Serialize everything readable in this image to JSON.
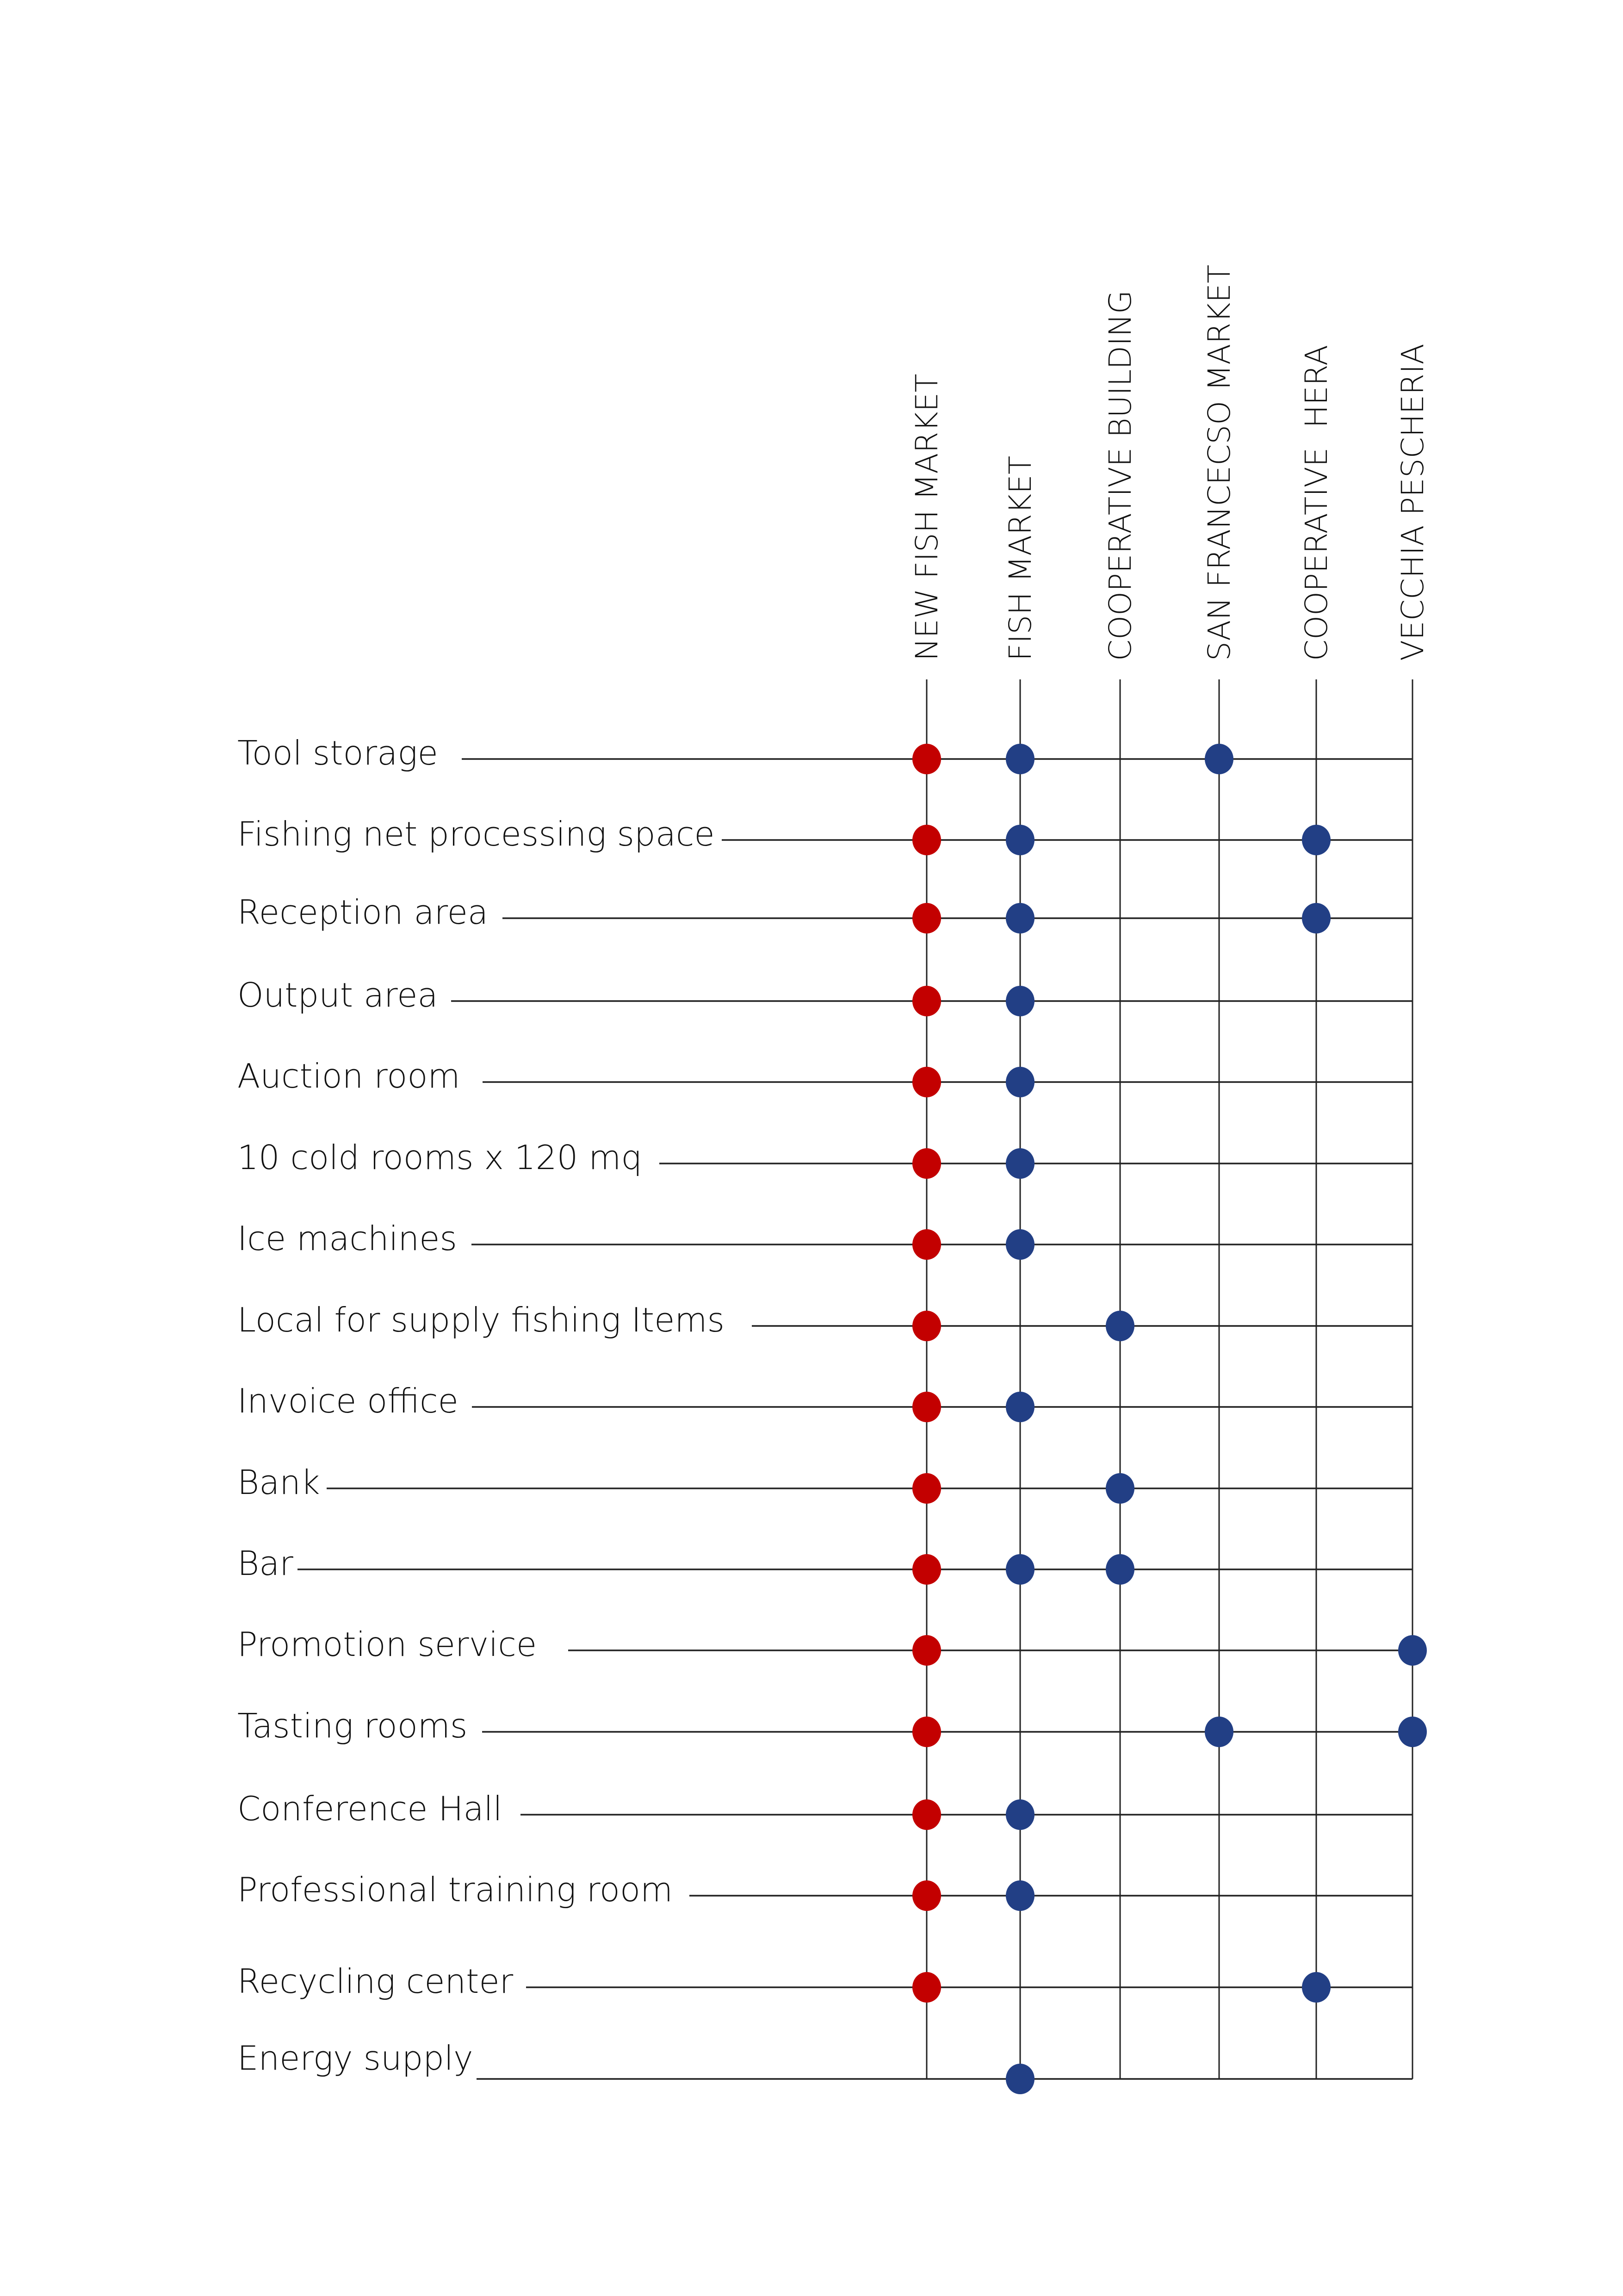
{
  "diagram": {
    "type": "facility-location-matrix",
    "colors": {
      "new_fish_market_dot": "#C30000",
      "existing_location_dot": "#223F85",
      "grid_line": "#222222"
    },
    "columns": [
      {
        "key": "new_fish_market",
        "label": "NEW FISH MARKET"
      },
      {
        "key": "fish_market",
        "label": "FISH MARKET"
      },
      {
        "key": "cooperative_building",
        "label": "COOPERATIVE BUILDING"
      },
      {
        "key": "san_francesco_market",
        "label": "SAN FRANCECSO MARKET"
      },
      {
        "key": "cooperative_hera",
        "label": "COOPERATIVE  HERA"
      },
      {
        "key": "vecchia_pescheria",
        "label": "VECCHIA PESCHERIA"
      }
    ],
    "rows": [
      {
        "label": "Tool storage",
        "marks": [
          "new_fish_market",
          "fish_market",
          "san_francesco_market"
        ]
      },
      {
        "label": "Fishing net processing space",
        "marks": [
          "new_fish_market",
          "fish_market",
          "cooperative_hera"
        ]
      },
      {
        "label": "Reception area",
        "marks": [
          "new_fish_market",
          "fish_market",
          "cooperative_hera"
        ]
      },
      {
        "label": "Output area",
        "marks": [
          "new_fish_market",
          "fish_market"
        ]
      },
      {
        "label": "Auction room",
        "marks": [
          "new_fish_market",
          "fish_market"
        ]
      },
      {
        "label": "10 cold rooms x 120 mq",
        "marks": [
          "new_fish_market",
          "fish_market"
        ]
      },
      {
        "label": "Ice machines",
        "marks": [
          "new_fish_market",
          "fish_market"
        ]
      },
      {
        "label": "Local for supply fishing Items",
        "marks": [
          "new_fish_market",
          "cooperative_building"
        ]
      },
      {
        "label": "Invoice office",
        "marks": [
          "new_fish_market",
          "fish_market"
        ]
      },
      {
        "label": "Bank",
        "marks": [
          "new_fish_market",
          "cooperative_building"
        ]
      },
      {
        "label": "Bar",
        "marks": [
          "new_fish_market",
          "fish_market",
          "cooperative_building"
        ]
      },
      {
        "label": "Promotion service",
        "marks": [
          "new_fish_market",
          "vecchia_pescheria"
        ]
      },
      {
        "label": "Tasting rooms",
        "marks": [
          "new_fish_market",
          "san_francesco_market",
          "vecchia_pescheria"
        ]
      },
      {
        "label": "Conference Hall",
        "marks": [
          "new_fish_market",
          "fish_market"
        ]
      },
      {
        "label": "Professional training room",
        "marks": [
          "new_fish_market",
          "fish_market"
        ]
      },
      {
        "label": "Recycling center",
        "marks": [
          "new_fish_market",
          "cooperative_hera"
        ]
      },
      {
        "label": "Energy supply",
        "marks": [
          "fish_market"
        ]
      }
    ]
  }
}
